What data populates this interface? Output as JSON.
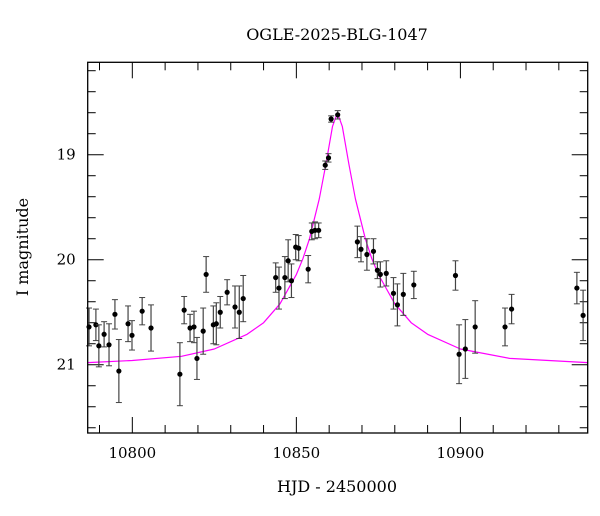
{
  "chart_data": {
    "type": "scatter",
    "title": "OGLE-2025-BLG-1047",
    "xlabel": "HJD - 2450000",
    "ylabel": "I magnitude",
    "xlim": [
      10786.4,
      10938.8
    ],
    "ylim": [
      21.65,
      18.12
    ],
    "y_inverted": true,
    "grid": false,
    "x_ticks": [
      10800,
      10850,
      10900
    ],
    "x_tick_labels": [
      "10800",
      "10850",
      "10900"
    ],
    "x_minor_step": 10,
    "y_ticks": [
      19,
      20,
      21
    ],
    "y_tick_labels": [
      "19",
      "20",
      "21"
    ],
    "y_minor_step": 0.2,
    "colors": {
      "points": "#000000",
      "errorbars": "#444444",
      "model": "#ff00ff"
    },
    "points": [
      [
        10786.8,
        20.64,
        0.18
      ],
      [
        10788.9,
        20.62,
        0.15
      ],
      [
        10789.8,
        20.82,
        0.2
      ],
      [
        10791.4,
        20.71,
        0.12
      ],
      [
        10792.9,
        20.81,
        0.2
      ],
      [
        10794.7,
        20.52,
        0.14
      ],
      [
        10795.9,
        21.06,
        0.3
      ],
      [
        10798.7,
        20.61,
        0.17
      ],
      [
        10799.9,
        20.72,
        0.14
      ],
      [
        10803.0,
        20.49,
        0.13
      ],
      [
        10805.7,
        20.65,
        0.22
      ],
      [
        10814.5,
        21.09,
        0.3
      ],
      [
        10815.8,
        20.48,
        0.13
      ],
      [
        10817.6,
        20.65,
        0.13
      ],
      [
        10818.8,
        20.64,
        0.15
      ],
      [
        10819.7,
        20.94,
        0.2
      ],
      [
        10821.6,
        20.68,
        0.22
      ],
      [
        10822.5,
        20.14,
        0.17
      ],
      [
        10824.7,
        20.62,
        0.18
      ],
      [
        10825.6,
        20.61,
        0.2
      ],
      [
        10826.8,
        20.5,
        0.15
      ],
      [
        10828.9,
        20.31,
        0.12
      ],
      [
        10831.3,
        20.45,
        0.2
      ],
      [
        10832.6,
        20.5,
        0.25
      ],
      [
        10833.8,
        20.37,
        0.22
      ],
      [
        10843.7,
        20.17,
        0.14
      ],
      [
        10844.7,
        20.27,
        0.2
      ],
      [
        10846.5,
        20.17,
        0.2
      ],
      [
        10847.5,
        20.01,
        0.2
      ],
      [
        10848.5,
        20.2,
        0.16
      ],
      [
        10849.8,
        19.88,
        0.12
      ],
      [
        10850.7,
        19.89,
        0.12
      ],
      [
        10853.6,
        20.09,
        0.13
      ],
      [
        10854.7,
        19.73,
        0.08
      ],
      [
        10855.7,
        19.72,
        0.08
      ],
      [
        10856.8,
        19.72,
        0.07
      ],
      [
        10858.8,
        19.1,
        0.04
      ],
      [
        10859.8,
        19.03,
        0.04
      ],
      [
        10860.6,
        18.66,
        0.03
      ],
      [
        10862.6,
        18.62,
        0.04
      ],
      [
        10868.6,
        19.83,
        0.15
      ],
      [
        10869.7,
        19.9,
        0.12
      ],
      [
        10871.5,
        19.95,
        0.15
      ],
      [
        10873.5,
        19.92,
        0.12
      ],
      [
        10874.7,
        20.1,
        0.08
      ],
      [
        10875.6,
        20.14,
        0.12
      ],
      [
        10877.4,
        20.13,
        0.12
      ],
      [
        10879.6,
        20.32,
        0.15
      ],
      [
        10880.8,
        20.43,
        0.2
      ],
      [
        10882.6,
        20.33,
        0.2
      ],
      [
        10885.8,
        20.24,
        0.13
      ],
      [
        10898.5,
        20.15,
        0.14
      ],
      [
        10899.6,
        20.9,
        0.28
      ],
      [
        10901.5,
        20.85,
        0.28
      ],
      [
        10904.5,
        20.64,
        0.25
      ],
      [
        10913.6,
        20.64,
        0.18
      ],
      [
        10915.6,
        20.47,
        0.14
      ],
      [
        10935.5,
        20.27,
        0.15
      ],
      [
        10937.4,
        20.53,
        0.24
      ]
    ],
    "model_curve": [
      [
        10786.4,
        20.98
      ],
      [
        10800,
        20.96
      ],
      [
        10815,
        20.92
      ],
      [
        10825,
        20.85
      ],
      [
        10835,
        20.71
      ],
      [
        10840,
        20.6
      ],
      [
        10845,
        20.42
      ],
      [
        10850,
        20.14
      ],
      [
        10852,
        19.99
      ],
      [
        10854,
        19.8
      ],
      [
        10857,
        19.42
      ],
      [
        10859,
        19.09
      ],
      [
        10861,
        18.73
      ],
      [
        10862.5,
        18.6
      ],
      [
        10864,
        18.73
      ],
      [
        10866,
        19.09
      ],
      [
        10868,
        19.42
      ],
      [
        10871,
        19.8
      ],
      [
        10873,
        19.99
      ],
      [
        10875,
        20.14
      ],
      [
        10880,
        20.42
      ],
      [
        10885,
        20.6
      ],
      [
        10890,
        20.71
      ],
      [
        10900,
        20.85
      ],
      [
        10915,
        20.94
      ],
      [
        10938.8,
        20.98
      ]
    ]
  }
}
